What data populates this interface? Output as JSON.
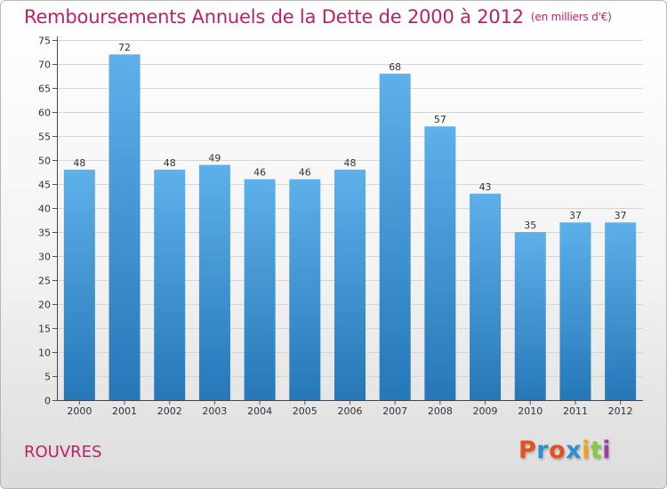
{
  "header": {
    "title": "Remboursements Annuels de la Dette de 2000 à 2012",
    "subtitle": "(en milliers d'€)"
  },
  "footer": {
    "place": "ROUVRES",
    "logo_text": "Proxiti",
    "logo_colors": [
      "#e2521c",
      "#2e8fd0",
      "#e2521c",
      "#2e8fd0",
      "#f0a21a",
      "#8cc63e",
      "#9b3fa0"
    ]
  },
  "colors": {
    "accent": "#c21e63",
    "bar_top": "#5eb0ea",
    "bar_bottom": "#2677b8"
  },
  "chart_data": {
    "type": "bar",
    "categories": [
      "2000",
      "2001",
      "2002",
      "2003",
      "2004",
      "2005",
      "2006",
      "2007",
      "2008",
      "2009",
      "2010",
      "2011",
      "2012"
    ],
    "values": [
      48,
      72,
      48,
      49,
      46,
      46,
      48,
      68,
      57,
      43,
      35,
      37,
      37
    ],
    "y_ticks": [
      0,
      5,
      10,
      15,
      20,
      25,
      30,
      35,
      40,
      45,
      50,
      55,
      60,
      65,
      70,
      75
    ],
    "ylim": [
      0,
      75
    ],
    "grid": "horizontal",
    "data_labels": true
  }
}
